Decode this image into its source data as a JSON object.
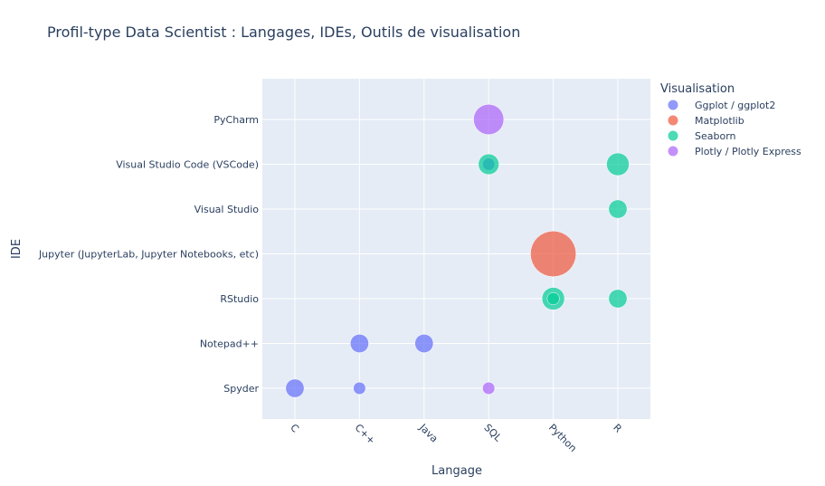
{
  "chart_data": {
    "type": "scatter",
    "title": "Profil-type Data Scientist : Langages, IDEs, Outils de visualisation",
    "xlabel": "Langage",
    "ylabel": "IDE",
    "x_categories": [
      "C",
      "C++",
      "Java",
      "SQL",
      "Python",
      "R"
    ],
    "y_categories": [
      "Spyder",
      "Notepad++",
      "RStudio",
      "Jupyter (JupyterLab, Jupyter Notebooks, etc)",
      "Visual Studio",
      "Visual Studio Code (VSCode)",
      "PyCharm"
    ],
    "legend_title": "Visualisation",
    "legend_position": "right",
    "grid": true,
    "series": [
      {
        "name": "Ggplot / ggplot2",
        "color": "#636efa",
        "points": [
          {
            "x": "C",
            "y": "Spyder",
            "size": 3
          },
          {
            "x": "C++",
            "y": "Spyder",
            "size": 1
          },
          {
            "x": "C++",
            "y": "Notepad++",
            "size": 3
          },
          {
            "x": "Java",
            "y": "Notepad++",
            "size": 3
          },
          {
            "x": "SQL",
            "y": "Visual Studio Code (VSCode)",
            "size": 1
          }
        ]
      },
      {
        "name": "Matplotlib",
        "color": "#ef553b",
        "points": [
          {
            "x": "Python",
            "y": "Jupyter (JupyterLab, Jupyter Notebooks, etc)",
            "size": 25
          }
        ]
      },
      {
        "name": "Seaborn",
        "color": "#00cc96",
        "points": [
          {
            "x": "SQL",
            "y": "Visual Studio Code (VSCode)",
            "size": 4
          },
          {
            "x": "R",
            "y": "Visual Studio Code (VSCode)",
            "size": 5
          },
          {
            "x": "R",
            "y": "Visual Studio",
            "size": 3
          },
          {
            "x": "Python",
            "y": "RStudio",
            "size": 5
          },
          {
            "x": "Python",
            "y": "RStudio",
            "size": 1
          },
          {
            "x": "R",
            "y": "RStudio",
            "size": 3
          }
        ]
      },
      {
        "name": "Plotly / Plotly Express",
        "color": "#ab63fa",
        "points": [
          {
            "x": "SQL",
            "y": "PyCharm",
            "size": 10
          },
          {
            "x": "SQL",
            "y": "Spyder",
            "size": 1
          }
        ]
      }
    ]
  }
}
